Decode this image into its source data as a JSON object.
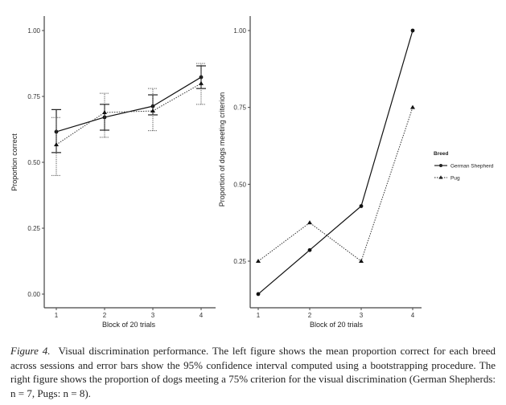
{
  "chart_data": [
    {
      "type": "line",
      "panel": "left",
      "title": "",
      "xlabel": "Block of 20 trials",
      "ylabel": "Proportion correct",
      "x": [
        1,
        2,
        3,
        4
      ],
      "x_tick_labels": [
        "1",
        "2",
        "3",
        "4"
      ],
      "y_ticks": [
        0.0,
        0.25,
        0.5,
        0.75,
        1.0
      ],
      "y_tick_labels": [
        "0.00",
        "0.25",
        "0.50",
        "0.75",
        "1.00"
      ],
      "ylim": [
        -0.05,
        1.03
      ],
      "grid": false,
      "series": [
        {
          "name": "German Shepherd",
          "marker": "circle",
          "linestyle": "solid",
          "values": [
            0.616,
            0.671,
            0.713,
            0.823
          ],
          "ci_low": [
            0.537,
            0.622,
            0.68,
            0.78
          ],
          "ci_high": [
            0.7,
            0.72,
            0.756,
            0.866
          ]
        },
        {
          "name": "Pug",
          "marker": "triangle",
          "linestyle": "dotted",
          "values": [
            0.567,
            0.689,
            0.695,
            0.799
          ],
          "ci_low": [
            0.45,
            0.595,
            0.62,
            0.72
          ],
          "ci_high": [
            0.67,
            0.762,
            0.78,
            0.875
          ]
        }
      ]
    },
    {
      "type": "line",
      "panel": "right",
      "title": "",
      "xlabel": "Block of 20 trials",
      "ylabel": "Proportion of dogs meeting criterion",
      "x": [
        1,
        2,
        3,
        4
      ],
      "x_tick_labels": [
        "1",
        "2",
        "3",
        "4"
      ],
      "y_ticks": [
        0.25,
        0.5,
        0.75,
        1.0
      ],
      "y_tick_labels": [
        "0.25",
        "0.50",
        "0.75",
        "1.00"
      ],
      "ylim": [
        0.1,
        1.03
      ],
      "grid": false,
      "legend": {
        "title": "Breed",
        "placement": "right",
        "entries": [
          "German Shepherd",
          "Pug"
        ]
      },
      "series": [
        {
          "name": "German Shepherd",
          "marker": "circle",
          "linestyle": "solid",
          "values": [
            0.143,
            0.286,
            0.429,
            1.0
          ]
        },
        {
          "name": "Pug",
          "marker": "triangle",
          "linestyle": "dotted",
          "values": [
            0.25,
            0.375,
            0.25,
            0.75
          ]
        }
      ]
    }
  ],
  "caption": {
    "label": "Figure 4.",
    "text": "Visual discrimination performance. The left figure shows the mean proportion correct for each breed across sessions and error bars show the 95% confidence interval computed using a bootstrapping procedure. The right figure shows the proportion of dogs meeting a 75% criterion for the visual discrimination (German Shepherds: n = 7, Pugs: n = 8)."
  }
}
